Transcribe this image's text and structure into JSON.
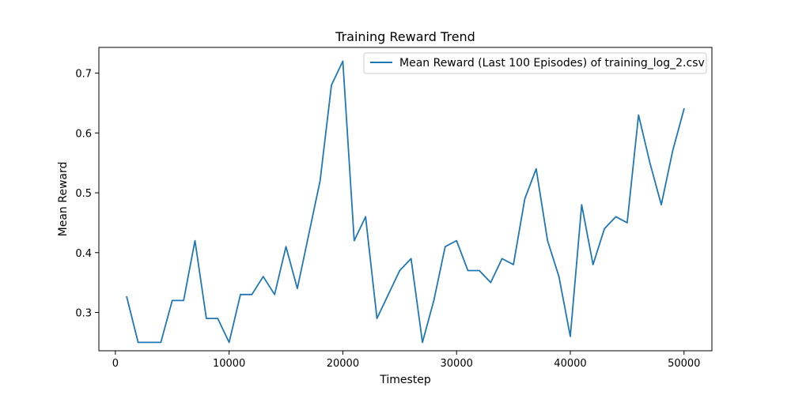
{
  "chart_data": {
    "type": "line",
    "title": "Training Reward Trend",
    "xlabel": "Timestep",
    "ylabel": "Mean Reward",
    "xlim": [
      -1450,
      52450
    ],
    "ylim": [
      0.236,
      0.743
    ],
    "xticks": [
      0,
      10000,
      20000,
      30000,
      40000,
      50000
    ],
    "yticks": [
      0.3,
      0.4,
      0.5,
      0.6,
      0.7
    ],
    "grid": false,
    "legend_position": "top-right",
    "series": [
      {
        "name": "Mean Reward (Last 100 Episodes) of training_log_2.csv",
        "color": "#1f77b4",
        "x": [
          1000,
          2000,
          3000,
          4000,
          5000,
          6000,
          7000,
          8000,
          9000,
          10000,
          11000,
          12000,
          13000,
          14000,
          15000,
          16000,
          17000,
          18000,
          19000,
          20000,
          21000,
          22000,
          23000,
          24000,
          25000,
          26000,
          27000,
          28000,
          29000,
          30000,
          31000,
          32000,
          33000,
          34000,
          35000,
          36000,
          37000,
          38000,
          39000,
          40000,
          41000,
          42000,
          43000,
          44000,
          45000,
          46000,
          47000,
          48000,
          49000,
          50000
        ],
        "y": [
          0.326,
          0.25,
          0.25,
          0.25,
          0.32,
          0.32,
          0.42,
          0.29,
          0.29,
          0.25,
          0.33,
          0.33,
          0.36,
          0.33,
          0.41,
          0.34,
          0.43,
          0.52,
          0.68,
          0.72,
          0.42,
          0.46,
          0.29,
          0.33,
          0.37,
          0.39,
          0.25,
          0.32,
          0.41,
          0.42,
          0.37,
          0.37,
          0.35,
          0.39,
          0.38,
          0.49,
          0.54,
          0.42,
          0.36,
          0.26,
          0.48,
          0.38,
          0.44,
          0.46,
          0.45,
          0.63,
          0.55,
          0.48,
          0.57,
          0.64
        ]
      }
    ]
  }
}
